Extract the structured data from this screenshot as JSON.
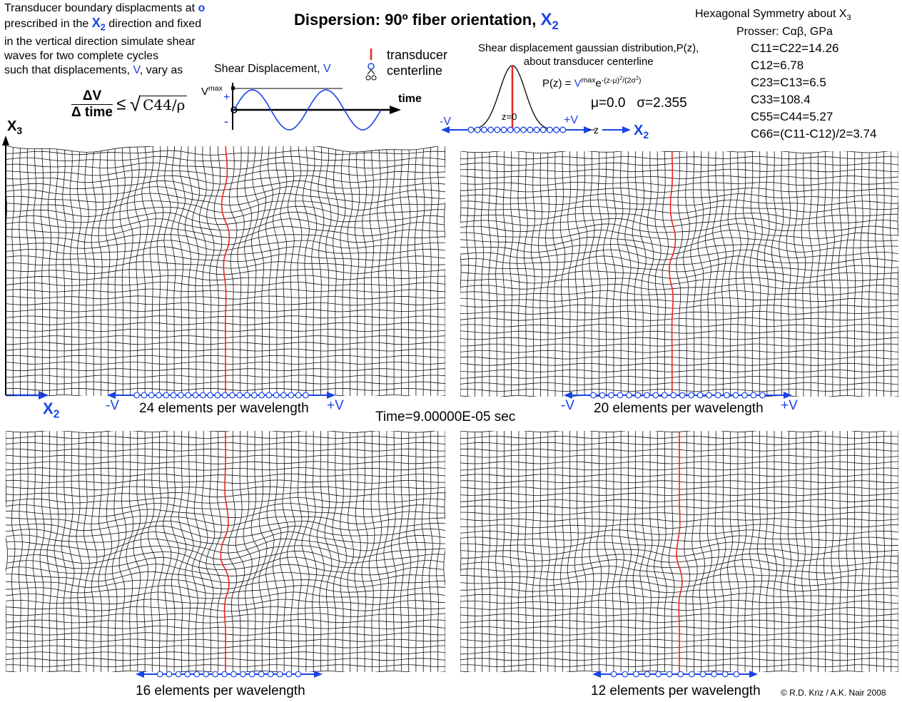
{
  "title": "Dispersion: 90º fiber orientation,",
  "title_axis": "X",
  "title_axis_sub": "2",
  "intro": {
    "line1": "Transducer boundary displacments at",
    "marker": "o",
    "line2a": "prescribed in the",
    "axis": "X",
    "axis_sub": "2",
    "line2b": "direction and fixed",
    "line3": "in the vertical direction simulate shear",
    "line4": "waves for two complete cycles",
    "line5a": "such that displacements,",
    "var": "V",
    "line5b": ", vary as"
  },
  "formula": {
    "num": "ΔV",
    "den": "Δ time",
    "rel": "≤",
    "root": "C44/ρ"
  },
  "shear_plot": {
    "title": "Shear Displacement,",
    "title_var": "V",
    "vmax": "V",
    "vmax_sup": "max",
    "plus": "+",
    "minus": "-",
    "time": "time"
  },
  "legend": {
    "line1": "transducer",
    "line2": "centerline"
  },
  "gauss": {
    "line1": "Shear displacement gaussian distribution,P(z),",
    "line2": "about transducer centerline",
    "formula_lhs": "P(z) =",
    "formula_v": "V",
    "formula_sup1": "max",
    "formula_e": "e",
    "formula_exp": "-(z-μ)",
    "formula_sq": "2",
    "formula_div": "/(2σ",
    "formula_close": ")",
    "mu": "μ=0.0",
    "sigma": "σ=2.355",
    "z0": "z=0",
    "minus_v": "-V",
    "plus_v": "+V",
    "z_axis": "z",
    "x2": "X",
    "x2_sub": "2"
  },
  "props": {
    "header": "Hexagonal Symmetry about X",
    "header_sub": "3",
    "prosser": "Prosser: Cαβ, GPa",
    "c11": "C11=C22=14.26",
    "c12": "C12=6.78",
    "c23": "C23=C13=6.5",
    "c33": "C33=108.4",
    "c55": "C55=C44=5.27",
    "c66": "C66=(C11-C12)/2=3.74"
  },
  "axes": {
    "x3": "X",
    "x3_sub": "3",
    "x2": "X",
    "x2_sub": "2"
  },
  "panels": [
    {
      "id": "tl",
      "label": "24 elements per wavelength",
      "minus": "-V",
      "plus": "+V"
    },
    {
      "id": "tr",
      "label": "20 elements per wavelength",
      "minus": "-V",
      "plus": "+V"
    },
    {
      "id": "bl",
      "label": "16 elements per wavelength"
    },
    {
      "id": "br",
      "label": "12 elements per wavelength"
    }
  ],
  "time_label": "Time=9.00000E-05 sec",
  "credit": "© R.D. Kriz / A.K. Nair 2008",
  "colors": {
    "accent": "#1a44e6",
    "centerline": "#e8261e",
    "mesh": "#111111"
  }
}
